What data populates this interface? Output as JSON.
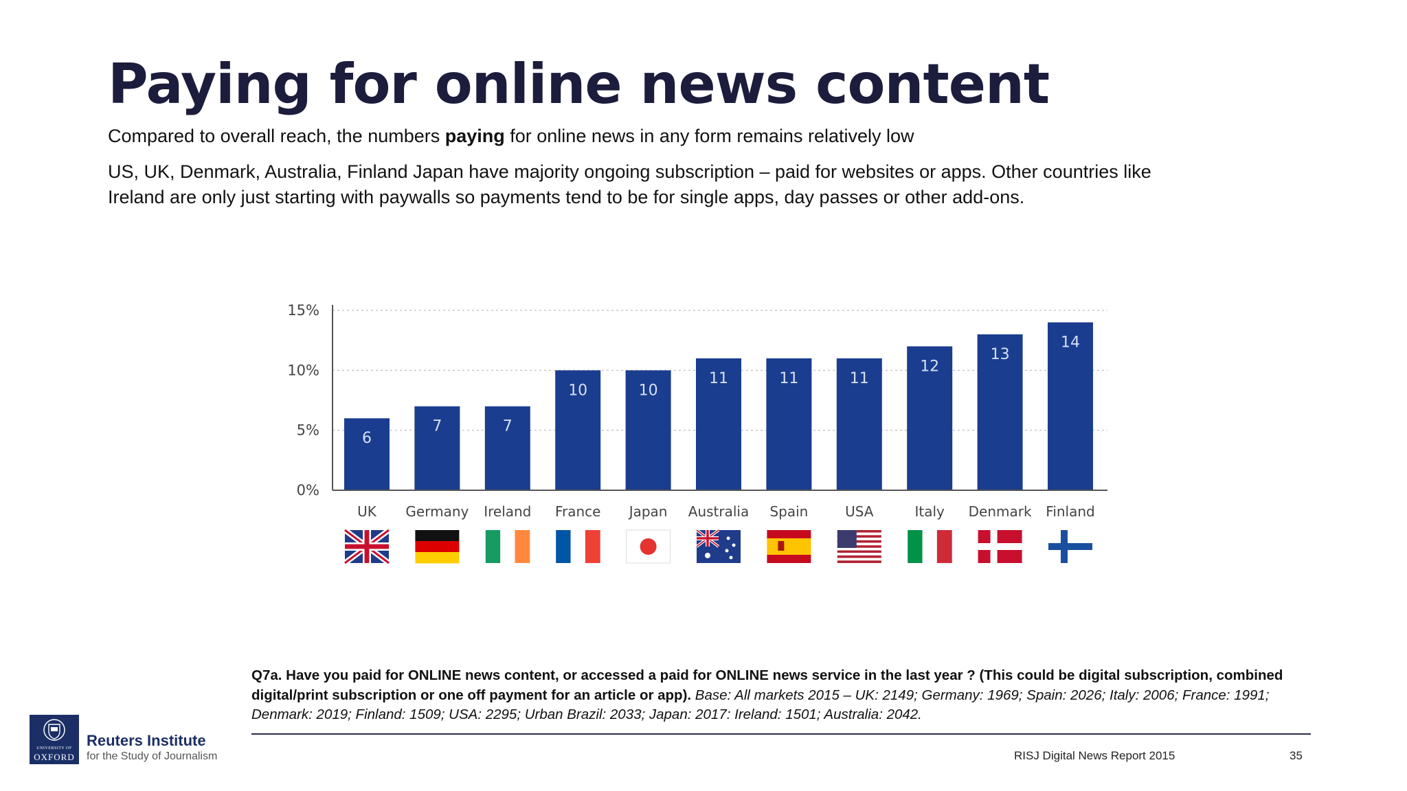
{
  "title": "Paying for online news content",
  "intro": {
    "line1_pre": "Compared to overall reach, the numbers ",
    "line1_bold": "paying",
    "line1_post": " for online news in any form remains relatively low",
    "line2": "US, UK, Denmark, Australia, Finland Japan have majority ongoing subscription – paid for websites or apps. Other countries like Ireland are only just starting with  paywalls so payments tend to be for single apps, day passes or other add-ons."
  },
  "chart_data": {
    "type": "bar",
    "categories": [
      "UK",
      "Germany",
      "Ireland",
      "France",
      "Japan",
      "Australia",
      "Spain",
      "USA",
      "Italy",
      "Denmark",
      "Finland"
    ],
    "values": [
      6,
      7,
      7,
      10,
      10,
      11,
      11,
      11,
      12,
      13,
      14
    ],
    "data_labels": [
      "6",
      "7",
      "7",
      "10",
      "10",
      "11",
      "11",
      "11",
      "12",
      "13",
      "14"
    ],
    "yticks": [
      0,
      5,
      10,
      15
    ],
    "ytick_labels": [
      "0%",
      "5%",
      "10%",
      "15%"
    ],
    "ylim": [
      0,
      15
    ],
    "grid": true,
    "bar_color": "#1a3d8f",
    "flag_icons": [
      "uk-flag-icon",
      "germany-flag-icon",
      "ireland-flag-icon",
      "france-flag-icon",
      "japan-flag-icon",
      "australia-flag-icon",
      "spain-flag-icon",
      "usa-flag-icon",
      "italy-flag-icon",
      "denmark-flag-icon",
      "finland-flag-icon"
    ]
  },
  "footnote": {
    "bold": "Q7a. Have you paid for ONLINE news content, or accessed a paid for ONLINE news service in the last year ? (This could be digital subscription, combined digital/print subscription or one off payment for an article or app).",
    "italic": " Base: All markets 2015 – UK: 2149; Germany: 1969; Spain: 2026; Italy: 2006; France: 1991; Denmark: 2019; Finland: 1509; USA: 2295; Urban Brazil: 2033; Japan: 2017: Ireland: 1501; Australia: 2042."
  },
  "logo": {
    "crest_univ": "UNIVERSITY OF",
    "crest_oxford": "OXFORD",
    "name": "Reuters Institute",
    "tagline": "for the Study of Journalism"
  },
  "footer": {
    "report": "RISJ Digital News Report 2015",
    "page": "35"
  },
  "colors": {
    "title": "#1c1c3c",
    "bar": "#1a3d8f",
    "logo": "#1b2f66"
  }
}
